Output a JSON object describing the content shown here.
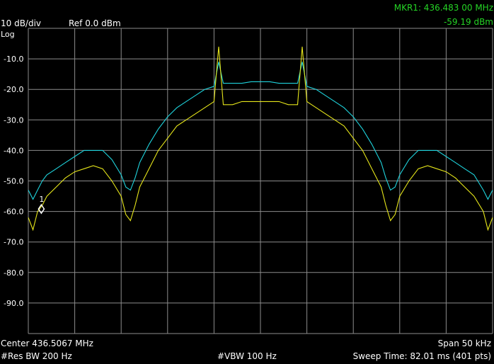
{
  "header": {
    "scale": "10 dB/div",
    "ref": "Ref 0.0 dBm",
    "log": "Log",
    "marker_label": "MKR1: 436.483 00 MHz",
    "marker_level": "-59.19 dBm"
  },
  "footer": {
    "center": "Center 436.5067 MHz",
    "span": "Span 50 kHz",
    "rbw": "#Res BW 200 Hz",
    "vbw": "#VBW 100 Hz",
    "sweep": "Sweep Time: 82.01 ms (401 pts)"
  },
  "colors": {
    "grid": "#8c8c8c",
    "trace_max": "#1fd3dc",
    "trace_live": "#e6e61a",
    "marker_text": "#25d425"
  },
  "chart_data": {
    "type": "line",
    "title": "",
    "xlabel": "",
    "ylabel": "",
    "x_unit": "kHz offset from center",
    "xlim": [
      -25,
      25
    ],
    "ylim": [
      -100,
      0
    ],
    "y_ticks": [
      "-10.0",
      "-20.0",
      "-30.0",
      "-40.0",
      "-50.0",
      "-60.0",
      "-70.0",
      "-80.0",
      "-90.0"
    ],
    "y_tick_values": [
      -10,
      -20,
      -30,
      -40,
      -50,
      -60,
      -70,
      -80,
      -90
    ],
    "grid": true,
    "marker": {
      "label": "1",
      "x": -23.6,
      "y": -59.19
    },
    "series": [
      {
        "color": "#1fd3dc",
        "x": [
          -25,
          -24.5,
          -24,
          -23.5,
          -23,
          -22,
          -21,
          -20,
          -19,
          -18,
          -17,
          -16,
          -15,
          -14.5,
          -14,
          -13.5,
          -13,
          -12,
          -11,
          -10,
          -9,
          -8,
          -7,
          -6,
          -5,
          -4.5,
          -4,
          -3,
          -2,
          -1,
          0,
          1,
          2,
          3,
          4,
          4.5,
          5,
          6,
          7,
          8,
          9,
          10,
          11,
          12,
          13,
          13.5,
          14,
          14.5,
          15,
          16,
          17,
          18,
          19,
          20,
          21,
          22,
          23,
          24,
          24.5,
          25
        ],
        "y": [
          -53,
          -56,
          -53,
          -50,
          -48,
          -46,
          -44,
          -42,
          -40,
          -40,
          -40,
          -43,
          -48,
          -52,
          -53,
          -49,
          -44,
          -38,
          -33,
          -29,
          -26,
          -24,
          -22,
          -20,
          -19,
          -11,
          -18,
          -18,
          -18,
          -17.5,
          -17.5,
          -17.5,
          -18,
          -18,
          -18,
          -11,
          -19,
          -20,
          -22,
          -24,
          -26,
          -29,
          -33,
          -38,
          -44,
          -49,
          -53,
          -52,
          -48,
          -43,
          -40,
          -40,
          -40,
          -42,
          -44,
          -46,
          -48,
          -53,
          -56,
          -53
        ]
      },
      {
        "color": "#e6e61a",
        "x": [
          -25,
          -24.5,
          -24,
          -23.5,
          -23,
          -22,
          -21,
          -20,
          -19,
          -18,
          -17,
          -16,
          -15,
          -14.5,
          -14,
          -13.5,
          -13,
          -12,
          -11,
          -10,
          -9,
          -8,
          -7,
          -6,
          -5,
          -4.5,
          -4,
          -3,
          -2,
          -1,
          0,
          1,
          2,
          3,
          4,
          4.5,
          5,
          6,
          7,
          8,
          9,
          10,
          11,
          12,
          13,
          13.5,
          14,
          14.5,
          15,
          16,
          17,
          18,
          19,
          20,
          21,
          22,
          23,
          24,
          24.5,
          25
        ],
        "y": [
          -62,
          -66,
          -60,
          -58,
          -55,
          -52,
          -49,
          -47,
          -46,
          -45,
          -46,
          -50,
          -55,
          -61,
          -63,
          -58,
          -52,
          -46,
          -40,
          -36,
          -32,
          -30,
          -28,
          -26,
          -24,
          -6,
          -25,
          -25,
          -24,
          -24,
          -24,
          -24,
          -24,
          -25,
          -25,
          -6,
          -24,
          -26,
          -28,
          -30,
          -32,
          -36,
          -40,
          -46,
          -52,
          -58,
          -63,
          -61,
          -55,
          -50,
          -46,
          -45,
          -46,
          -47,
          -49,
          -52,
          -55,
          -60,
          -66,
          -62
        ]
      }
    ]
  }
}
